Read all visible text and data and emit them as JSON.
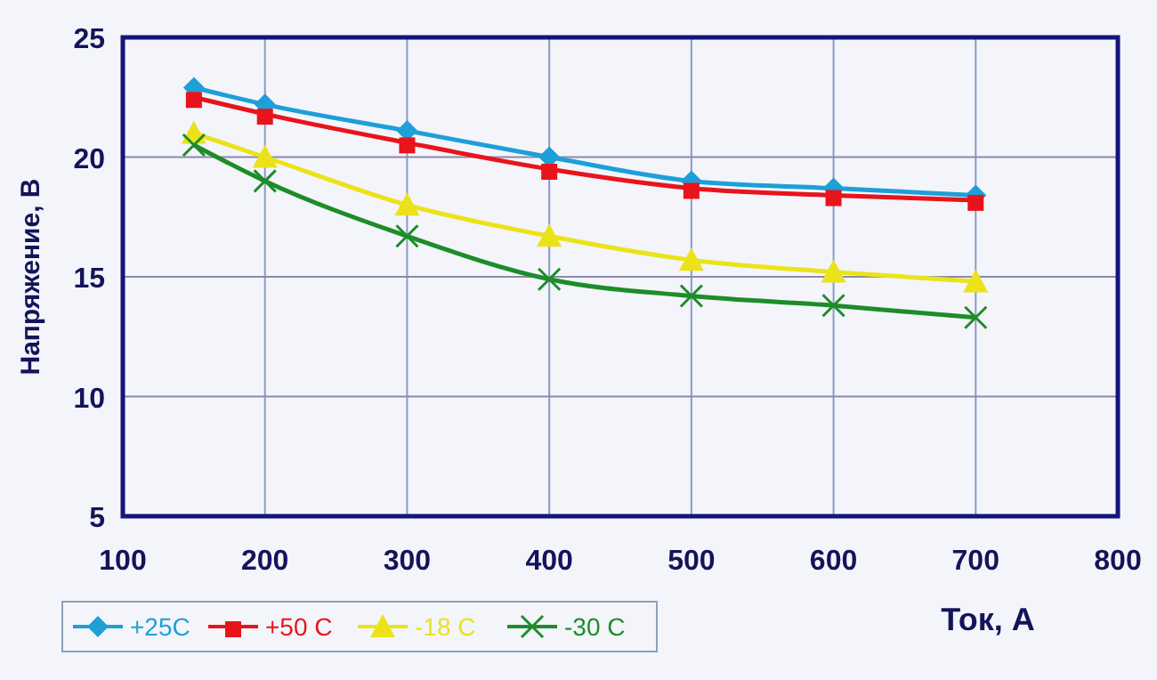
{
  "chart_data": {
    "type": "line",
    "xlabel": "Ток, А",
    "ylabel": "Напряжение, В",
    "xlim": [
      100,
      800
    ],
    "xticks": [
      100,
      200,
      300,
      400,
      500,
      600,
      700,
      800
    ],
    "ylim": [
      5,
      25
    ],
    "yticks": [
      5,
      10,
      15,
      20,
      25
    ],
    "grid": true,
    "legend": "bottom left",
    "x": [
      150,
      200,
      300,
      400,
      500,
      600,
      700
    ],
    "series": [
      {
        "name": "+25C",
        "color": "#1e9fd8",
        "marker": "diamond",
        "values": [
          22.9,
          22.2,
          21.1,
          20.0,
          19.0,
          18.7,
          18.4
        ]
      },
      {
        "name": "+50 C",
        "color": "#e8141c",
        "marker": "square",
        "values": [
          22.5,
          21.8,
          20.6,
          19.5,
          18.7,
          18.4,
          18.2
        ]
      },
      {
        "name": "-18 C",
        "color": "#ece21a",
        "marker": "triangle",
        "values": [
          21.0,
          20.0,
          18.0,
          16.7,
          15.7,
          15.2,
          14.8
        ]
      },
      {
        "name": "-30 C",
        "color": "#1e8c28",
        "marker": "cross",
        "values": [
          20.5,
          19.0,
          16.7,
          14.9,
          14.2,
          13.8,
          13.3
        ]
      }
    ]
  }
}
